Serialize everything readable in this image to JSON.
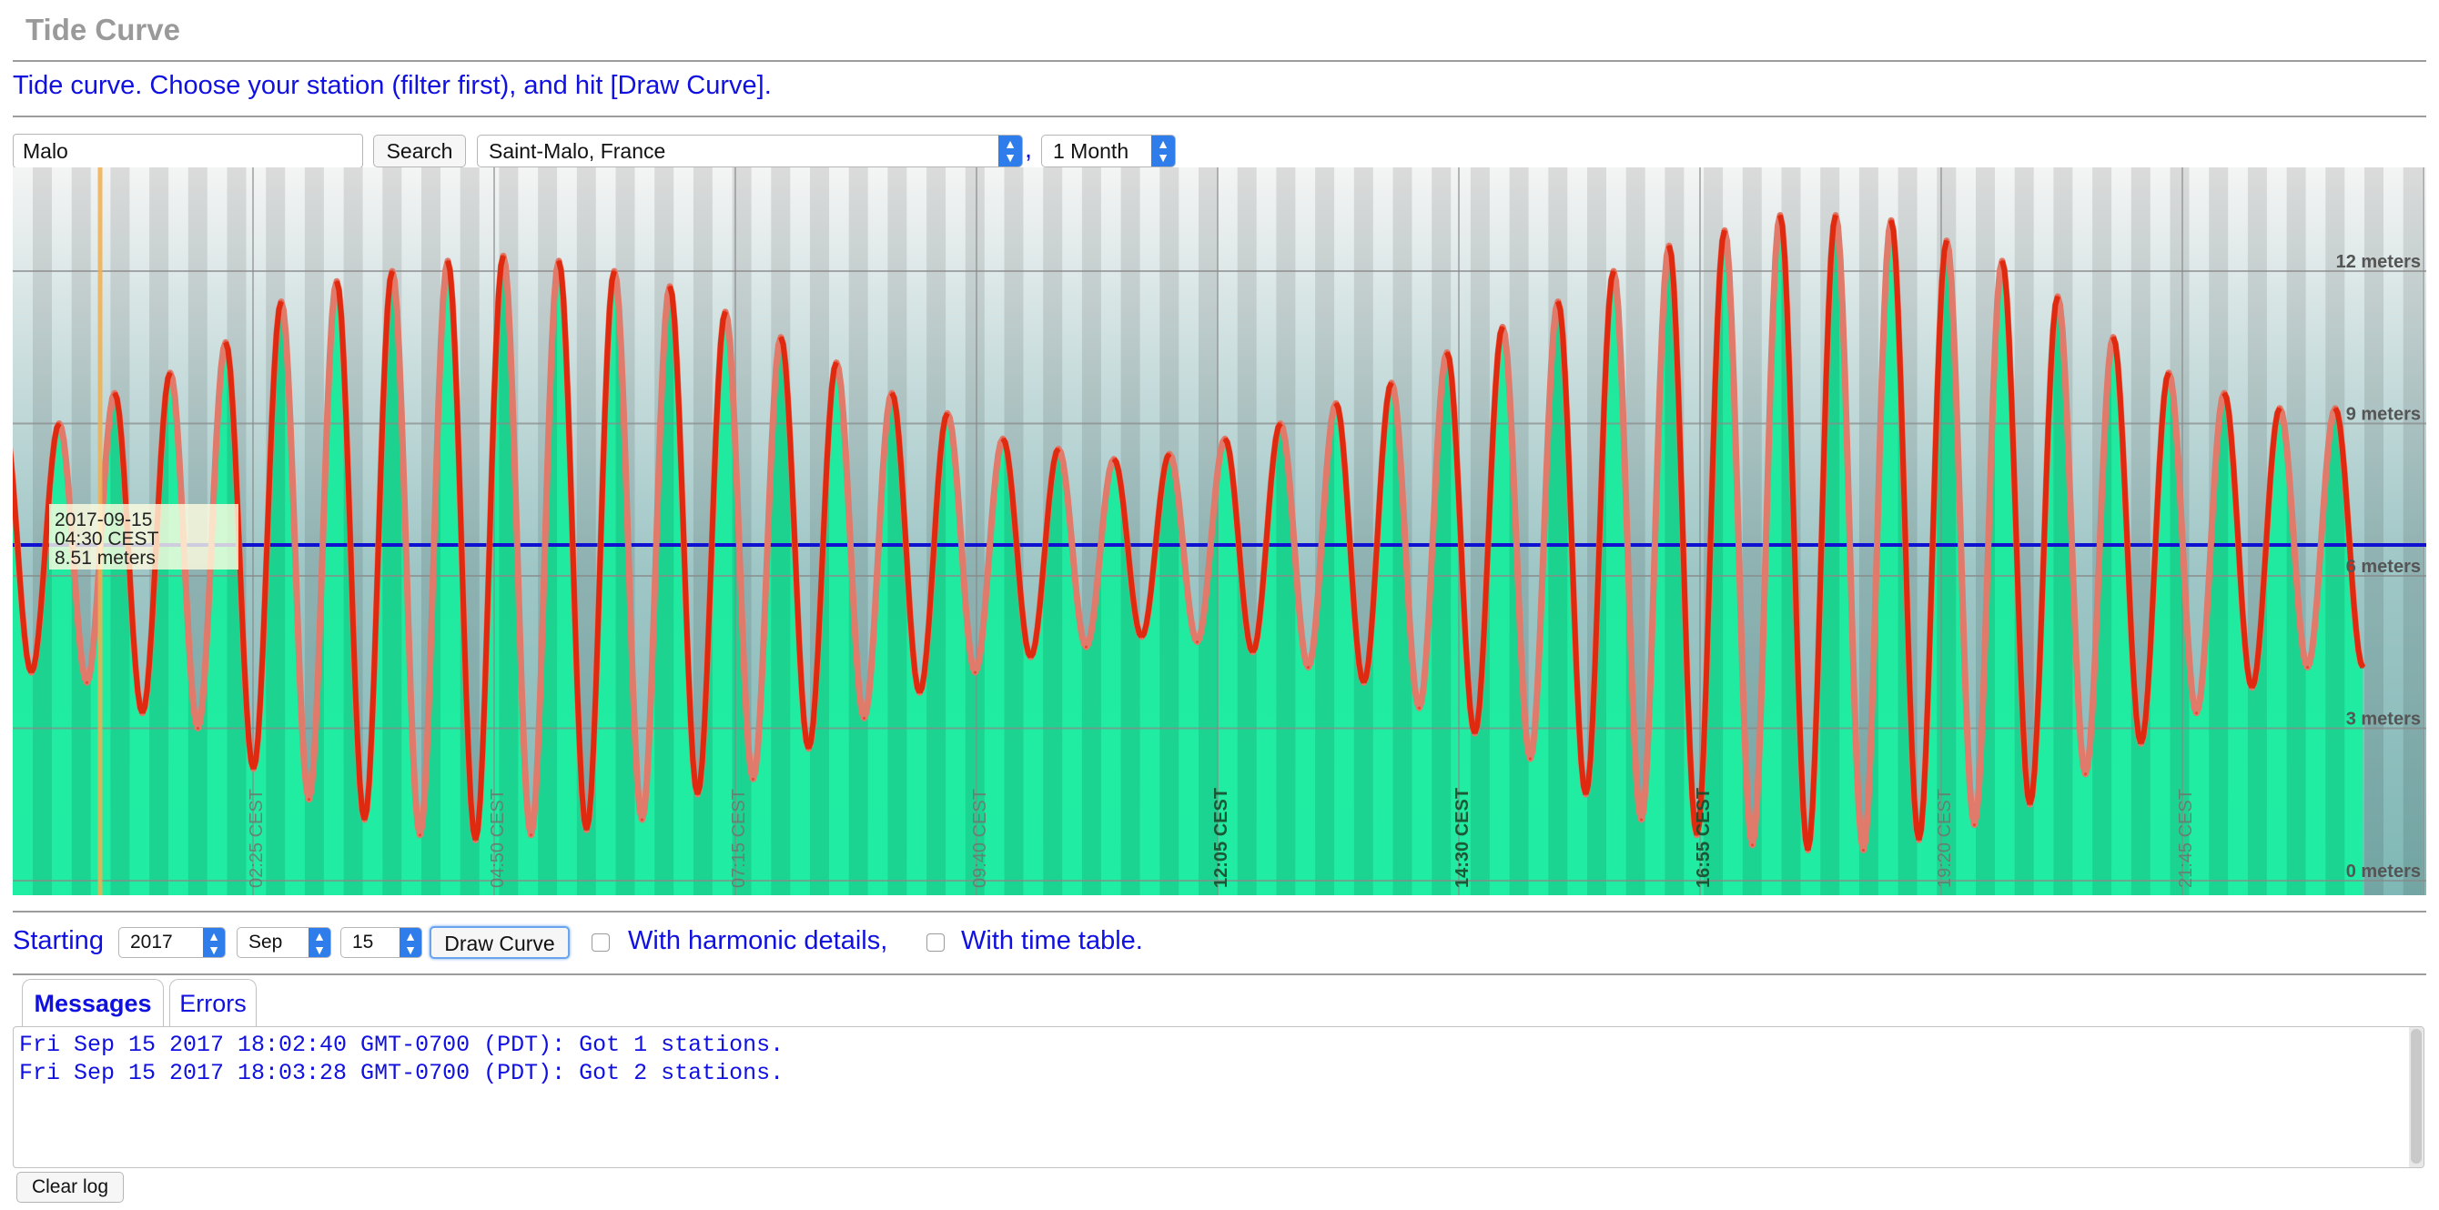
{
  "page": {
    "title": "Tide Curve",
    "intro": "Tide curve. Choose your station (filter first), and hit [Draw Curve]."
  },
  "station_filter": {
    "value": "Malo",
    "search_label": "Search",
    "station_selected": "Saint-Malo, France",
    "separator": ",",
    "duration_selected": "1 Month"
  },
  "chart": {
    "y_axis_labels": [
      "12 meters",
      "9 meters",
      "6 meters",
      "3 meters",
      "0 meters"
    ],
    "time_labels": [
      "02:25 CEST",
      "04:50 CEST",
      "07:15 CEST",
      "09:40 CEST",
      "12:05 CEST",
      "14:30 CEST",
      "16:55 CEST",
      "19:20 CEST",
      "21:45 CEST"
    ],
    "tooltip": {
      "date": "2017-09-15",
      "time": "04:30 CEST",
      "height": "8.51 meters"
    },
    "colors": {
      "tide_curve": "#e02a10",
      "tide_curve_faded": "#e07a6a",
      "water_fill": "#10ee99",
      "sky_top": "#f2f2f2",
      "sky_bottom": "#8fc0bf",
      "mean_line": "#1010d0",
      "cursor_line": "#f0b050"
    }
  },
  "chart_data": {
    "type": "line",
    "title": "",
    "xlabel": "",
    "ylabel": "",
    "ylim": [
      0,
      14
    ],
    "y_ticks": [
      0,
      3,
      6,
      9,
      12
    ],
    "grid": true,
    "series": [
      {
        "values": [
          9.1,
          4.1,
          9.0,
          3.9,
          9.6,
          3.3,
          10.0,
          3.0,
          10.6,
          2.2,
          11.4,
          1.6,
          11.8,
          1.2,
          12.0,
          0.9,
          12.2,
          0.8,
          12.3,
          0.9,
          12.2,
          1.0,
          12.0,
          1.2,
          11.7,
          1.7,
          11.2,
          2.0,
          10.7,
          2.6,
          10.2,
          3.2,
          9.6,
          3.7,
          9.2,
          4.1,
          8.7,
          4.4,
          8.5,
          4.6,
          8.3,
          4.8,
          8.4,
          4.7,
          8.7,
          4.5,
          9.0,
          4.2,
          9.4,
          3.9,
          9.8,
          3.4,
          10.4,
          2.9,
          10.9,
          2.4,
          11.4,
          1.7,
          12.0,
          1.2,
          12.5,
          0.9,
          12.8,
          0.7,
          13.1,
          0.6,
          13.1,
          0.6,
          13.0,
          0.8,
          12.6,
          1.1,
          12.2,
          1.5,
          11.5,
          2.1,
          10.7,
          2.7,
          10.0,
          3.3,
          9.6,
          3.8,
          9.3,
          4.2,
          9.3,
          4.2
        ]
      }
    ]
  },
  "starting": {
    "label": "Starting",
    "year": "2017",
    "month": "Sep",
    "day": "15",
    "draw_label": "Draw Curve",
    "harmonic_label": "With harmonic details,",
    "timetable_label": "With time table."
  },
  "tabs": [
    {
      "label": "Messages"
    },
    {
      "label": "Errors"
    }
  ],
  "log": {
    "lines": [
      "Fri Sep 15 2017 18:02:40 GMT-0700 (PDT): Got 1 stations.",
      "Fri Sep 15 2017 18:03:28 GMT-0700 (PDT): Got 2 stations."
    ],
    "clear_label": "Clear log"
  }
}
